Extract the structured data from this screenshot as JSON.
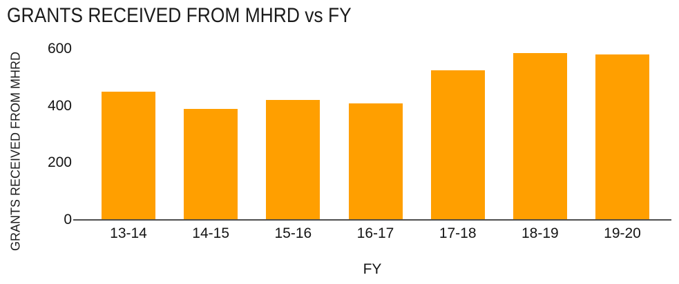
{
  "colors": {
    "bar": "#FF9F00",
    "axis_line": "#4d4d4d",
    "text": "#141414",
    "background": "#ffffff"
  },
  "chart_data": {
    "type": "bar",
    "title": "GRANTS RECEIVED FROM MHRD vs FY",
    "xlabel": "FY",
    "ylabel": "GRANTS RECEIVED FROM MHRD",
    "categories": [
      "13-14",
      "14-15",
      "15-16",
      "16-17",
      "17-18",
      "18-19",
      "19-20"
    ],
    "values": [
      450,
      390,
      420,
      410,
      525,
      585,
      580
    ],
    "yticks": [
      0,
      200,
      400,
      600
    ],
    "ylim": [
      0,
      600
    ],
    "grid": false,
    "legend": false,
    "bar_color": "#FF9F00"
  }
}
